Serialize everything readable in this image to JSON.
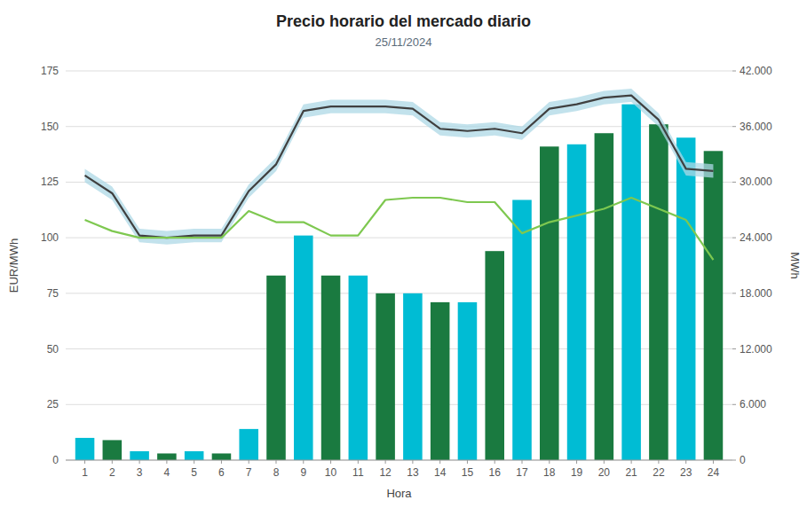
{
  "chart_data": {
    "type": "bar",
    "title": "Precio horario del mercado diario",
    "subtitle": "25/11/2024",
    "xlabel": "Hora",
    "ylabel": "EUR/MWh",
    "y2label": "MWh",
    "x": [
      1,
      2,
      3,
      4,
      5,
      6,
      7,
      8,
      9,
      10,
      11,
      12,
      13,
      14,
      15,
      16,
      17,
      18,
      19,
      20,
      21,
      22,
      23,
      24
    ],
    "series": [
      {
        "type": "bar",
        "colors": [
          "#00bcd4",
          "#1a7a40",
          "#00bcd4",
          "#1a7a40",
          "#00bcd4",
          "#1a7a40",
          "#00bcd4",
          "#1a7a40",
          "#00bcd4",
          "#1a7a40",
          "#00bcd4",
          "#1a7a40",
          "#00bcd4",
          "#1a7a40",
          "#00bcd4",
          "#1a7a40",
          "#00bcd4",
          "#1a7a40",
          "#00bcd4",
          "#1a7a40",
          "#00bcd4",
          "#1a7a40",
          "#00bcd4",
          "#1a7a40"
        ],
        "values": [
          10,
          9,
          4,
          3,
          4,
          3,
          14,
          83,
          101,
          83,
          83,
          75,
          75,
          71,
          71,
          94,
          117,
          141,
          142,
          147,
          160,
          151,
          145,
          139
        ]
      },
      {
        "type": "area",
        "color": "#add8e6",
        "upper": [
          131,
          123,
          104,
          103,
          104,
          104,
          124,
          136,
          160,
          162,
          162,
          162,
          161,
          152,
          151,
          152,
          150,
          161,
          163,
          166,
          167,
          156,
          134,
          133
        ],
        "lower": [
          125,
          117,
          98,
          97,
          98,
          98,
          118,
          130,
          154,
          156,
          156,
          156,
          155,
          146,
          145,
          146,
          144,
          155,
          157,
          160,
          161,
          150,
          128,
          127
        ]
      },
      {
        "type": "line",
        "color": "#404040",
        "values": [
          128,
          120,
          101,
          100,
          101,
          101,
          121,
          133,
          157,
          159,
          159,
          159,
          158,
          149,
          148,
          149,
          147,
          158,
          160,
          163,
          164,
          153,
          131,
          130
        ]
      },
      {
        "type": "line",
        "color": "#7ec850",
        "values": [
          108,
          103,
          100,
          100,
          100,
          100,
          112,
          107,
          107,
          101,
          101,
          117,
          118,
          118,
          116,
          116,
          102,
          107,
          110,
          113,
          118,
          113,
          108,
          90
        ]
      }
    ],
    "xlim": [
      0.3,
      24.7
    ],
    "xticks": [
      1,
      2,
      3,
      4,
      5,
      6,
      7,
      8,
      9,
      10,
      11,
      12,
      13,
      14,
      15,
      16,
      17,
      18,
      19,
      20,
      21,
      22,
      23,
      24
    ],
    "ylim": [
      0,
      175
    ],
    "yticks": [
      0,
      25,
      50,
      75,
      100,
      125,
      150,
      175
    ],
    "y2lim": [
      0,
      42000
    ],
    "y2ticks": [
      0,
      {
        "value": 6000,
        "label": "6.000"
      },
      {
        "value": 12000,
        "label": "12.000"
      },
      {
        "value": 18000,
        "label": "18.000"
      },
      {
        "value": 24000,
        "label": "24.000"
      },
      {
        "value": 30000,
        "label": "30.000"
      },
      {
        "value": 36000,
        "label": "36.000"
      },
      {
        "value": 42000,
        "label": "42.000"
      }
    ],
    "grid": true
  }
}
